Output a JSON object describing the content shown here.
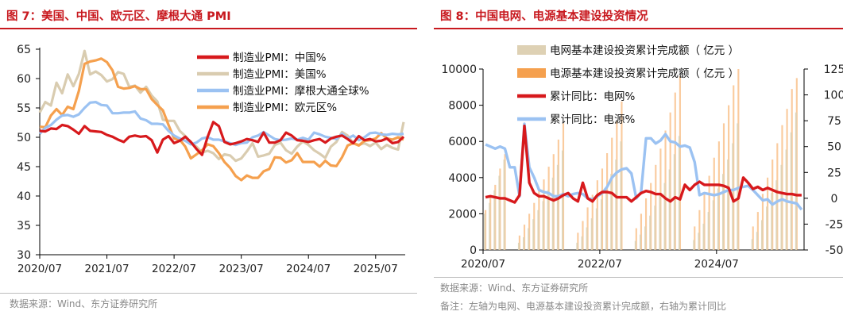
{
  "panel1": {
    "title": "图 7：美国、中国、欧元区、摩根大通 PMI",
    "source": "数据来源：Wind、东方证券研究所"
  },
  "panel2": {
    "title": "图 8：中国电网、电源基本建设投资情况",
    "source": "数据来源：Wind、东方证券研究所",
    "note": "备注：左轴为电网、电源基本建设投资累计完成额，右轴为累计同比"
  },
  "chart_data": [
    {
      "type": "line",
      "title": "图 7：美国、中国、欧元区、摩根大通 PMI",
      "xlabel": "",
      "ylabel": "",
      "x_ticks": [
        "2020/07",
        "2021/07",
        "2022/07",
        "2023/07",
        "2024/07",
        "2025/07"
      ],
      "x_start": "2020/07",
      "x_end": "2025/12",
      "y_ticks": [
        30,
        35,
        40,
        45,
        50,
        55,
        60,
        65
      ],
      "ylim": [
        30,
        65
      ],
      "grid": false,
      "legend": "top-right",
      "series": [
        {
          "name": "制造业PMI：中国%",
          "color": "#d7191c",
          "values": [
            51.1,
            51.0,
            51.5,
            51.4,
            52.1,
            51.9,
            51.3,
            50.6,
            51.9,
            51.1,
            51.0,
            50.9,
            50.4,
            50.1,
            49.6,
            49.2,
            50.1,
            50.3,
            50.1,
            50.2,
            49.5,
            47.4,
            49.6,
            50.2,
            49.0,
            49.4,
            50.1,
            49.2,
            48.0,
            47.0,
            50.1,
            52.6,
            51.9,
            49.2,
            48.8,
            49.0,
            49.3,
            49.7,
            49.5,
            49.2,
            50.8,
            49.1,
            49.1,
            49.5,
            50.8,
            50.3,
            49.5,
            49.4,
            49.2,
            49.5,
            49.7,
            49.1,
            49.8,
            50.1,
            50.3,
            49.7,
            49.0,
            50.2,
            49.5,
            49.7,
            49.3,
            49.4,
            49.8,
            49.0,
            49.2,
            50.1
          ]
        },
        {
          "name": "制造业PMI：美国%",
          "color": "#d9ccb0",
          "values": [
            54.2,
            56.0,
            55.4,
            59.3,
            57.5,
            60.7,
            58.7,
            60.8,
            64.7,
            60.7,
            61.2,
            60.6,
            59.5,
            59.9,
            61.1,
            60.8,
            58.6,
            58.8,
            57.6,
            58.6,
            57.1,
            56.1,
            53.0,
            52.8,
            52.8,
            51.1,
            50.2,
            49.0,
            48.4,
            47.4,
            47.7,
            47.3,
            46.3,
            47.1,
            46.9,
            46.0,
            46.4,
            47.6,
            49.0,
            46.7,
            46.9,
            47.2,
            48.7,
            49.1,
            47.8,
            47.2,
            48.4,
            49.3,
            48.7,
            47.8,
            47.2,
            46.5,
            48.4,
            49.2,
            50.9,
            50.3,
            49.0,
            48.7,
            49.0,
            48.5,
            49.1,
            48.0,
            48.7,
            48.2,
            47.9,
            52.6
          ]
        },
        {
          "name": "制造业PMI：摩根大通全球%",
          "color": "#9bc2f2",
          "values": [
            50.6,
            51.6,
            52.1,
            53.0,
            53.7,
            53.8,
            53.5,
            53.9,
            55.0,
            55.9,
            56.0,
            55.5,
            55.4,
            54.1,
            54.1,
            54.2,
            54.2,
            54.4,
            53.2,
            52.9,
            52.3,
            52.3,
            52.2,
            51.1,
            50.3,
            49.8,
            49.4,
            48.8,
            49.1,
            49.8,
            50.0,
            49.6,
            49.6,
            49.3,
            49.0,
            48.7,
            49.0,
            49.1,
            50.0,
            50.3,
            50.9,
            50.3,
            49.7,
            49.5,
            49.6,
            49.8,
            49.6,
            49.9,
            49.6,
            50.8,
            50.5,
            50.1,
            49.9,
            49.7,
            50.6,
            49.8,
            50.3,
            49.5,
            50.0,
            50.7,
            50.8,
            50.5,
            50.4,
            50.6,
            50.5,
            50.6
          ]
        },
        {
          "name": "制造业PMI：欧元区%",
          "color": "#f5a04e",
          "values": [
            51.8,
            51.7,
            53.7,
            54.8,
            53.8,
            55.2,
            54.8,
            57.9,
            62.5,
            62.9,
            63.1,
            63.4,
            62.8,
            61.4,
            58.6,
            58.3,
            58.4,
            58.7,
            58.2,
            58.2,
            56.5,
            55.5,
            54.6,
            52.1,
            49.8,
            49.6,
            48.4,
            46.4,
            47.1,
            47.8,
            48.8,
            48.5,
            47.3,
            45.8,
            44.8,
            43.4,
            42.7,
            43.5,
            43.1,
            43.1,
            44.2,
            44.6,
            46.6,
            46.5,
            45.7,
            46.1,
            47.3,
            45.8,
            45.8,
            45.8,
            45.0,
            46.0,
            45.2,
            45.1,
            46.6,
            48.6,
            49.0,
            48.6,
            49.4,
            49.5,
            49.8,
            50.7,
            49.8,
            49.6,
            50.0,
            49.6
          ]
        }
      ]
    },
    {
      "type": "bar",
      "title": "图 8：中国电网、电源基本建设投资情况",
      "xlabel": "",
      "ylabel": "",
      "x_ticks": [
        "2020/07",
        "2022/07",
        "2024/07"
      ],
      "x_start": "2020/07",
      "x_end": "2025/12",
      "left_axis": {
        "ticks": [
          0,
          2000,
          4000,
          6000,
          8000,
          10000
        ],
        "range": [
          0,
          10000
        ]
      },
      "right_axis": {
        "ticks": [
          -50,
          -25,
          0,
          25,
          50,
          75,
          100,
          125
        ],
        "range": [
          -50,
          125
        ]
      },
      "grid": false,
      "legend": "top-right",
      "series": [
        {
          "name": "电网基本建设投资累计完成额（亿元）",
          "axis": "left",
          "kind": "bar",
          "color": "#ded1b4",
          "values": [
            2000,
            2600,
            3300,
            4100,
            5000,
            0,
            0,
            400,
            700,
            1200,
            1700,
            2200,
            2700,
            3300,
            4000,
            4700,
            5500,
            0,
            0,
            400,
            750,
            1250,
            1750,
            2300,
            2800,
            3500,
            4200,
            5000,
            6000,
            0,
            0,
            500,
            850,
            1300,
            1900,
            2450,
            3050,
            3700,
            4450,
            5300,
            6300,
            0,
            0,
            550,
            950,
            1450,
            2100,
            2750,
            3400,
            4200,
            5000,
            5900,
            7000,
            0,
            0,
            600,
            1000,
            1650,
            2400,
            3150,
            3850,
            4700,
            5550,
            6500,
            7600,
            0
          ]
        },
        {
          "name": "电源基本建设投资累计完成额（亿元）",
          "axis": "left",
          "kind": "bar",
          "color": "#f5a04e",
          "values": [
            2200,
            2900,
            3600,
            4500,
            5300,
            0,
            0,
            800,
            1400,
            2000,
            2600,
            3300,
            3900,
            4600,
            5300,
            6100,
            7000,
            0,
            0,
            950,
            1600,
            2350,
            3050,
            3850,
            4500,
            5350,
            6200,
            7100,
            8200,
            0,
            0,
            1200,
            2000,
            2850,
            3700,
            4700,
            5600,
            6600,
            7600,
            8700,
            9600,
            0,
            0,
            1300,
            2200,
            3150,
            4100,
            5100,
            6000,
            7000,
            8000,
            9100,
            10000,
            0,
            0,
            1300,
            2100,
            3100,
            4000,
            5000,
            5900,
            6900,
            7800,
            8900,
            9500,
            0
          ]
        },
        {
          "name": "累计同比：电网%",
          "axis": "right",
          "kind": "line",
          "color": "#d7191c",
          "values": [
            1.0,
            2.0,
            1.0,
            0.0,
            0.0,
            -2.0,
            -4.0,
            3.0,
            70.0,
            15.0,
            5.0,
            2.0,
            2.0,
            0.0,
            -2.0,
            0.0,
            3.0,
            5.0,
            0.0,
            -3.0,
            15.0,
            0.0,
            -3.0,
            3.0,
            6.0,
            6.0,
            5.0,
            1.0,
            1.0,
            1.0,
            -3.0,
            1.0,
            5.0,
            7.0,
            6.0,
            4.0,
            4.0,
            0.0,
            -3.0,
            1.0,
            -1.0,
            13.0,
            8.0,
            13.0,
            16.0,
            13.0,
            13.0,
            13.0,
            13.0,
            12.0,
            10.0,
            -3.0,
            0.0,
            20.0,
            15.0,
            9.0,
            11.0,
            8.0,
            10.0,
            8.0,
            6.0,
            5.0,
            4.0,
            4.0,
            3.0,
            3.0
          ]
        },
        {
          "name": "累计同比：电源%",
          "axis": "right",
          "kind": "line",
          "color": "#9bc2f2",
          "values": [
            52.0,
            50.0,
            48.0,
            50.0,
            48.0,
            30.0,
            30.0,
            2.0,
            72.0,
            30.0,
            20.0,
            8.0,
            6.0,
            5.0,
            2.0,
            2.0,
            4.0,
            2.0,
            4.0,
            5.0,
            4.0,
            0.0,
            -1.0,
            2.0,
            5.0,
            11.0,
            20.0,
            25.0,
            28.0,
            29.0,
            24.0,
            0.0,
            6.0,
            58.0,
            58.0,
            53.0,
            56.0,
            62.0,
            55.0,
            54.0,
            50.0,
            51.0,
            49.0,
            35.0,
            3.0,
            5.0,
            4.0,
            3.0,
            4.0,
            6.0,
            8.0,
            8.0,
            10.0,
            11.0,
            12.0,
            8.0,
            3.0,
            -2.0,
            -1.0,
            -6.0,
            -3.0,
            -1.0,
            -3.0,
            -4.0,
            -5.0,
            -11.0
          ]
        }
      ]
    }
  ]
}
